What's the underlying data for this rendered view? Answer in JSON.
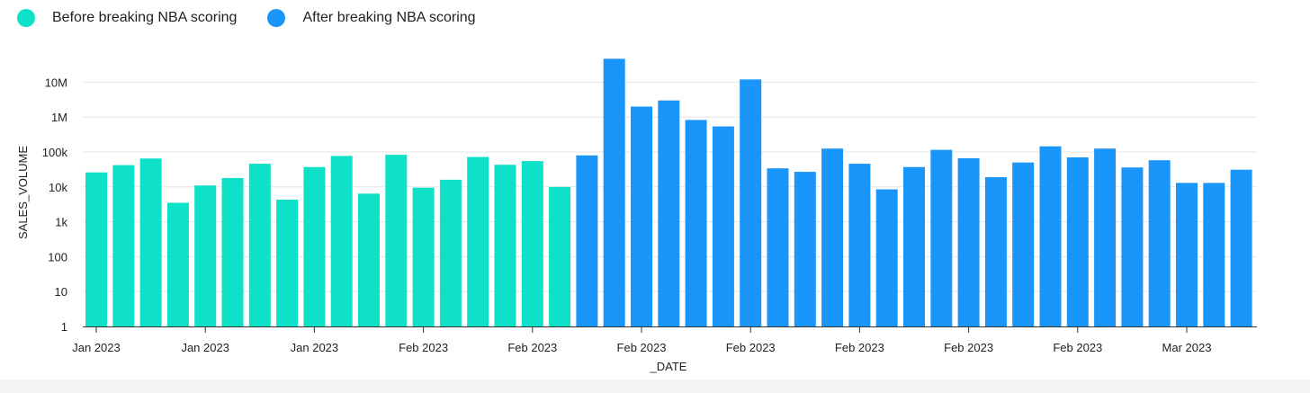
{
  "chart_data": {
    "type": "bar",
    "title": "",
    "xlabel": "_DATE",
    "ylabel": "SALES_VOLUME",
    "yscale": "log",
    "ylim": [
      1,
      50000000
    ],
    "y_ticks": [
      {
        "value": 1,
        "label": "1"
      },
      {
        "value": 10,
        "label": "10"
      },
      {
        "value": 100,
        "label": "100"
      },
      {
        "value": 1000,
        "label": "1k"
      },
      {
        "value": 10000,
        "label": "10k"
      },
      {
        "value": 100000,
        "label": "100k"
      },
      {
        "value": 1000000,
        "label": "1M"
      },
      {
        "value": 10000000,
        "label": "10M"
      }
    ],
    "x_tick_labels": [
      {
        "bar_index": 0,
        "label": "Jan 2023"
      },
      {
        "bar_index": 4,
        "label": "Jan 2023"
      },
      {
        "bar_index": 8,
        "label": "Jan 2023"
      },
      {
        "bar_index": 12,
        "label": "Feb 2023"
      },
      {
        "bar_index": 16,
        "label": "Feb 2023"
      },
      {
        "bar_index": 20,
        "label": "Feb 2023"
      },
      {
        "bar_index": 24,
        "label": "Feb 2023"
      },
      {
        "bar_index": 28,
        "label": "Feb 2023"
      },
      {
        "bar_index": 32,
        "label": "Feb 2023"
      },
      {
        "bar_index": 36,
        "label": "Feb 2023"
      },
      {
        "bar_index": 40,
        "label": "Mar 2023"
      }
    ],
    "grid": true,
    "legend_position": "top-left",
    "series": [
      {
        "name": "Before breaking NBA scoring",
        "color": "#0fe0c8",
        "values": [
          26000,
          42000,
          65000,
          3500,
          11000,
          18000,
          46000,
          4300,
          37000,
          77000,
          6400,
          83000,
          9500,
          16000,
          72000,
          43000,
          55000,
          10000
        ]
      },
      {
        "name": "After breaking NBA scoring",
        "color": "#1a96fb",
        "values": [
          80000,
          47000000,
          2000000,
          3000000,
          830000,
          540000,
          12000000,
          34000,
          27000,
          125000,
          46000,
          8500,
          37000,
          115000,
          66000,
          19000,
          50000,
          145000,
          70000,
          125000,
          36000,
          58000,
          13000,
          13000,
          31000
        ]
      }
    ]
  }
}
